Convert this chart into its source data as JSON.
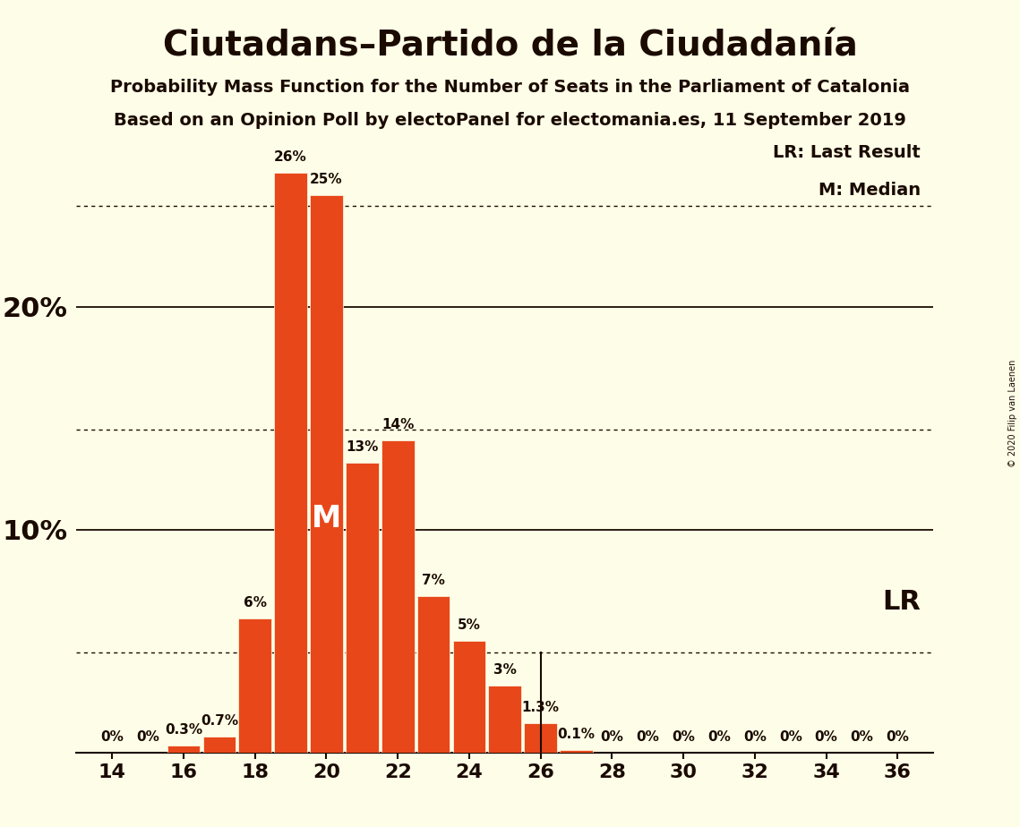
{
  "title": "Ciutadans–Partido de la Ciudadanía",
  "subtitle1": "Probability Mass Function for the Number of Seats in the Parliament of Catalonia",
  "subtitle2": "Based on an Opinion Poll by electoPanel for electomania.es, 11 September 2019",
  "copyright": "© 2020 Filip van Laenen",
  "seats": [
    14,
    15,
    16,
    17,
    18,
    19,
    20,
    21,
    22,
    23,
    24,
    25,
    26,
    27,
    28,
    29,
    30,
    31,
    32,
    33,
    34,
    35,
    36
  ],
  "probabilities": [
    0.0,
    0.0,
    0.3,
    0.7,
    6.0,
    26.0,
    25.0,
    13.0,
    14.0,
    7.0,
    5.0,
    3.0,
    1.3,
    0.1,
    0.0,
    0.0,
    0.0,
    0.0,
    0.0,
    0.0,
    0.0,
    0.0,
    0.0
  ],
  "bar_color": "#E8471A",
  "background_color": "#FEFEE8",
  "text_color": "#1A0A00",
  "lr_seat": 26,
  "median_seat": 20,
  "x_ticks": [
    14,
    16,
    18,
    20,
    22,
    24,
    26,
    28,
    30,
    32,
    34,
    36
  ],
  "ylim": [
    0,
    28
  ],
  "solid_line_y": [
    10.0,
    20.0
  ],
  "dotted_line_y": [
    4.5,
    14.5,
    24.5
  ],
  "bar_labels": {
    "14": "0%",
    "15": "0%",
    "16": "0.3%",
    "17": "0.7%",
    "18": "6%",
    "19": "26%",
    "20": "25%",
    "21": "13%",
    "22": "14%",
    "23": "7%",
    "24": "5%",
    "25": "3%",
    "26": "1.3%",
    "27": "0.1%",
    "28": "0%",
    "29": "0%",
    "30": "0%",
    "31": "0%",
    "32": "0%",
    "33": "0%",
    "34": "0%",
    "35": "0%",
    "36": "0%"
  },
  "label_fontsize": 11,
  "tick_fontsize": 16,
  "ytick_fontsize": 22,
  "title_fontsize": 28,
  "subtitle_fontsize": 14,
  "legend_fontsize": 14,
  "lr_fontsize": 22,
  "m_fontsize": 24
}
